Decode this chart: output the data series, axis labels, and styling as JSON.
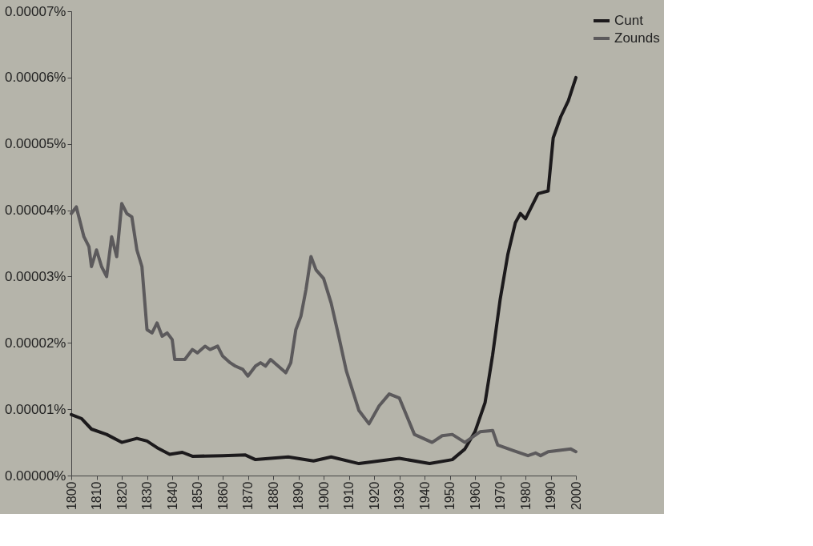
{
  "chart_data": {
    "type": "line",
    "xlim": [
      1800,
      2000
    ],
    "ylim": [
      0,
      7e-05
    ],
    "xticks": [
      1800,
      1810,
      1820,
      1830,
      1840,
      1850,
      1860,
      1870,
      1880,
      1890,
      1900,
      1910,
      1920,
      1930,
      1940,
      1950,
      1960,
      1970,
      1980,
      1990,
      2000
    ],
    "yticks": [
      {
        "value": 0,
        "label": "0.00000%"
      },
      {
        "value": 1e-05,
        "label": "0.00001%"
      },
      {
        "value": 2e-05,
        "label": "0.00002%"
      },
      {
        "value": 3e-05,
        "label": "0.00003%"
      },
      {
        "value": 4e-05,
        "label": "0.00004%"
      },
      {
        "value": 5e-05,
        "label": "0.00005%"
      },
      {
        "value": 6e-05,
        "label": "0.00006%"
      },
      {
        "value": 7e-05,
        "label": "0.00007%"
      }
    ],
    "legend": "right",
    "grid": false,
    "series": [
      {
        "name": "Cunt",
        "color": "#1c1a1c",
        "x": [
          1800,
          1804,
          1808,
          1814,
          1820,
          1826,
          1830,
          1834,
          1839,
          1844,
          1848,
          1860,
          1869,
          1873,
          1886,
          1896,
          1903,
          1914,
          1930,
          1942,
          1951,
          1956,
          1960,
          1964,
          1967,
          1970,
          1973,
          1976,
          1978,
          1980,
          1985,
          1989,
          1991,
          1994,
          1997,
          2000
        ],
        "values": [
          9.2e-06,
          8.6e-06,
          7e-06,
          6.2e-06,
          5e-06,
          5.6e-06,
          5.2e-06,
          4.2e-06,
          3.2e-06,
          3.5e-06,
          2.9e-06,
          3e-06,
          3.1e-06,
          2.4e-06,
          2.8e-06,
          2.2e-06,
          2.8e-06,
          1.8e-06,
          2.6e-06,
          1.8e-06,
          2.4e-06,
          4e-06,
          6.6e-06,
          1.1e-05,
          1.82e-05,
          2.66e-05,
          3.33e-05,
          3.81e-05,
          3.95e-05,
          3.87e-05,
          4.25e-05,
          4.29e-05,
          5.09e-05,
          5.41e-05,
          5.65e-05,
          6e-05
        ]
      },
      {
        "name": "Zounds",
        "color": "#5c5a5c",
        "x": [
          1800,
          1802,
          1805,
          1807,
          1808,
          1810,
          1812,
          1814,
          1816,
          1818,
          1820,
          1822,
          1824,
          1826,
          1828,
          1830,
          1832,
          1834,
          1836,
          1838,
          1840,
          1841,
          1845,
          1848,
          1850,
          1853,
          1855,
          1858,
          1860,
          1863,
          1865,
          1868,
          1870,
          1873,
          1875,
          1877,
          1879,
          1882,
          1885,
          1887,
          1889,
          1891,
          1893,
          1895,
          1897,
          1900,
          1903,
          1906,
          1909,
          1914,
          1918,
          1922,
          1926,
          1930,
          1936,
          1943,
          1947,
          1951,
          1956,
          1962,
          1967,
          1969,
          1975,
          1981,
          1984,
          1986,
          1989,
          1998,
          2000
        ],
        "values": [
          3.95e-05,
          4.05e-05,
          3.6e-05,
          3.45e-05,
          3.15e-05,
          3.4e-05,
          3.15e-05,
          3e-05,
          3.6e-05,
          3.3e-05,
          4.1e-05,
          3.95e-05,
          3.9e-05,
          3.4e-05,
          3.15e-05,
          2.2e-05,
          2.15e-05,
          2.3e-05,
          2.1e-05,
          2.15e-05,
          2.05e-05,
          1.75e-05,
          1.75e-05,
          1.9e-05,
          1.85e-05,
          1.95e-05,
          1.9e-05,
          1.95e-05,
          1.8e-05,
          1.7e-05,
          1.65e-05,
          1.6e-05,
          1.5e-05,
          1.65e-05,
          1.7e-05,
          1.65e-05,
          1.75e-05,
          1.65e-05,
          1.55e-05,
          1.7e-05,
          2.2e-05,
          2.4e-05,
          2.8e-05,
          3.3e-05,
          3.1e-05,
          2.97e-05,
          2.6e-05,
          2.1e-05,
          1.58e-05,
          9.8e-06,
          7.8e-06,
          1.05e-05,
          1.23e-05,
          1.17e-05,
          6.2e-06,
          5e-06,
          6e-06,
          6.2e-06,
          5e-06,
          6.6e-06,
          6.8e-06,
          4.6e-06,
          3.8e-06,
          3e-06,
          3.4e-06,
          3e-06,
          3.6e-06,
          4e-06,
          3.6e-06
        ]
      }
    ]
  }
}
